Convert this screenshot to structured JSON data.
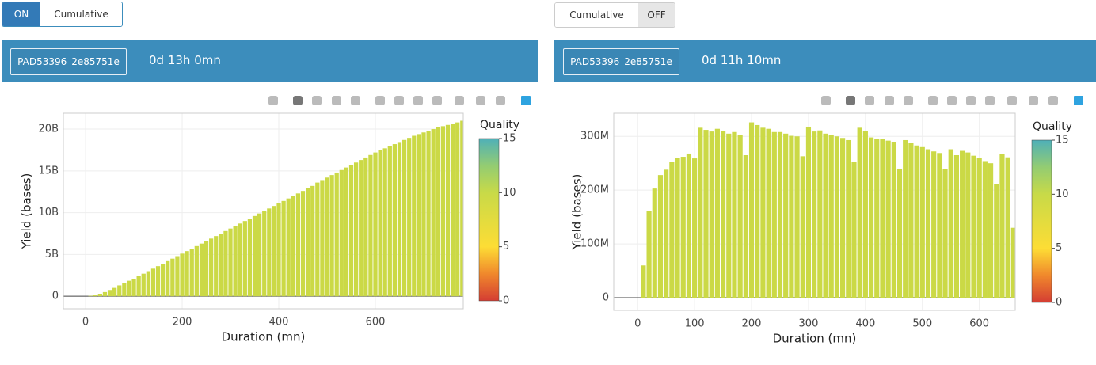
{
  "panels": [
    {
      "toggle": [
        "ON",
        "Cumulative"
      ],
      "header": {
        "button": "PAD53396_2e85751e",
        "duration": "0d 13h 0mn"
      }
    },
    {
      "toggle": [
        "Cumulative",
        "OFF"
      ],
      "header": {
        "button": "PAD53396_2e85751e",
        "duration": "0d 11h 10mn"
      }
    }
  ],
  "chart_data": [
    {
      "type": "bar",
      "x_label": "Duration (mn)",
      "y_label": "Yield (bases)",
      "color": "#cbd946",
      "grid": true,
      "x": [
        10,
        20,
        30,
        40,
        50,
        60,
        70,
        80,
        90,
        100,
        110,
        120,
        130,
        140,
        150,
        160,
        170,
        180,
        190,
        200,
        210,
        220,
        230,
        240,
        250,
        260,
        270,
        280,
        290,
        300,
        310,
        320,
        330,
        340,
        350,
        360,
        370,
        380,
        390,
        400,
        410,
        420,
        430,
        440,
        450,
        460,
        470,
        480,
        490,
        500,
        510,
        520,
        530,
        540,
        550,
        560,
        570,
        580,
        590,
        600,
        610,
        620,
        630,
        640,
        650,
        660,
        670,
        680,
        690,
        700,
        710,
        720,
        730,
        740,
        750,
        760,
        770,
        780
      ],
      "values": [
        50000000.0,
        120000000.0,
        300000000.0,
        500000000.0,
        750000000.0,
        1000000000.0,
        1300000000.0,
        1550000000.0,
        1850000000.0,
        2100000000.0,
        2400000000.0,
        2700000000.0,
        3000000000.0,
        3300000000.0,
        3600000000.0,
        3900000000.0,
        4200000000.0,
        4500000000.0,
        4800000000.0,
        5100000000.0,
        5400000000.0,
        5700000000.0,
        6000000000.0,
        6300000000.0,
        6600000000.0,
        6900000000.0,
        7200000000.0,
        7500000000.0,
        7800000000.0,
        8100000000.0,
        8400000000.0,
        8700000000.0,
        9000000000.0,
        9300000000.0,
        9600000000.0,
        9900000000.0,
        10200000000.0,
        10500000000.0,
        10800000000.0,
        11100000000.0,
        11400000000.0,
        11700000000.0,
        12000000000.0,
        12300000000.0,
        12600000000.0,
        12900000000.0,
        13200000000.0,
        13600000000.0,
        13900000000.0,
        14200000000.0,
        14500000000.0,
        14800000000.0,
        15100000000.0,
        15400000000.0,
        15700000000.0,
        16000000000.0,
        16300000000.0,
        16600000000.0,
        16900000000.0,
        17200000000.0,
        17450000000.0,
        17700000000.0,
        17950000000.0,
        18200000000.0,
        18450000000.0,
        18700000000.0,
        18950000000.0,
        19200000000.0,
        19400000000.0,
        19600000000.0,
        19800000000.0,
        20000000000.0,
        20200000000.0,
        20350000000.0,
        20500000000.0,
        20650000000.0,
        20800000000.0,
        21000000000.0
      ],
      "xlim": [
        -46,
        782
      ],
      "xticks": [
        0,
        200,
        400,
        600
      ],
      "ylim": [
        -1500000000.0,
        21900000000.0
      ],
      "yticks": [
        0,
        {
          "value": 5000000000.0,
          "label": "5B"
        },
        {
          "value": 10000000000.0,
          "label": "10B"
        },
        {
          "value": 15000000000.0,
          "label": "15B"
        },
        {
          "value": 20000000000.0,
          "label": "20B"
        }
      ],
      "colorbar": {
        "title": "Quality",
        "lim": [
          0,
          15
        ],
        "ticks": [
          0,
          5,
          10,
          15
        ],
        "stops": [
          [
            0,
            "#d43d33"
          ],
          [
            2.5,
            "#f0882c"
          ],
          [
            5,
            "#fddd35"
          ],
          [
            10,
            "#c8da48"
          ],
          [
            12.5,
            "#93cc72"
          ],
          [
            15,
            "#4fb0b8"
          ]
        ]
      }
    },
    {
      "type": "bar",
      "x_label": "Duration (mn)",
      "y_label": "Yield (bases)",
      "color": "#cbd946",
      "grid": true,
      "x": [
        10,
        20,
        30,
        40,
        50,
        60,
        70,
        80,
        90,
        100,
        110,
        120,
        130,
        140,
        150,
        160,
        170,
        180,
        190,
        200,
        210,
        220,
        230,
        240,
        250,
        260,
        270,
        280,
        290,
        300,
        310,
        320,
        330,
        340,
        350,
        360,
        370,
        380,
        390,
        400,
        410,
        420,
        430,
        440,
        450,
        460,
        470,
        480,
        490,
        500,
        510,
        520,
        530,
        540,
        550,
        560,
        570,
        580,
        590,
        600,
        610,
        620,
        630,
        640,
        650,
        660
      ],
      "values": [
        60000000.0,
        161000000.0,
        203000000.0,
        228000000.0,
        238000000.0,
        253000000.0,
        260000000.0,
        262000000.0,
        268000000.0,
        259000000.0,
        316000000.0,
        312000000.0,
        309000000.0,
        314000000.0,
        310000000.0,
        305000000.0,
        308000000.0,
        302000000.0,
        265000000.0,
        326000000.0,
        321000000.0,
        316000000.0,
        314000000.0,
        308000000.0,
        308000000.0,
        305000000.0,
        301000000.0,
        300000000.0,
        263000000.0,
        318000000.0,
        309000000.0,
        311000000.0,
        305000000.0,
        303000000.0,
        300000000.0,
        297000000.0,
        293000000.0,
        252000000.0,
        316000000.0,
        310000000.0,
        298000000.0,
        295000000.0,
        295000000.0,
        292000000.0,
        290000000.0,
        240000000.0,
        293000000.0,
        288000000.0,
        283000000.0,
        280000000.0,
        276000000.0,
        272000000.0,
        269000000.0,
        239000000.0,
        276000000.0,
        265000000.0,
        273000000.0,
        270000000.0,
        264000000.0,
        260000000.0,
        254000000.0,
        250000000.0,
        212000000.0,
        267000000.0,
        261000000.0,
        130000000.0
      ],
      "xlim": [
        -42,
        663
      ],
      "xticks": [
        0,
        100,
        200,
        300,
        400,
        500,
        600
      ],
      "ylim": [
        -23500000.0,
        343000000.0
      ],
      "yticks": [
        0,
        {
          "value": 100000000.0,
          "label": "100M"
        },
        {
          "value": 200000000.0,
          "label": "200M"
        },
        {
          "value": 300000000.0,
          "label": "300M"
        }
      ],
      "colorbar": {
        "title": "Quality",
        "lim": [
          0,
          15
        ],
        "ticks": [
          0,
          5,
          10,
          15
        ],
        "stops": [
          [
            0,
            "#d43d33"
          ],
          [
            2.5,
            "#f0882c"
          ],
          [
            5,
            "#fddd35"
          ],
          [
            10,
            "#c8da48"
          ],
          [
            12.5,
            "#93cc72"
          ],
          [
            15,
            "#4fb0b8"
          ]
        ]
      }
    }
  ]
}
